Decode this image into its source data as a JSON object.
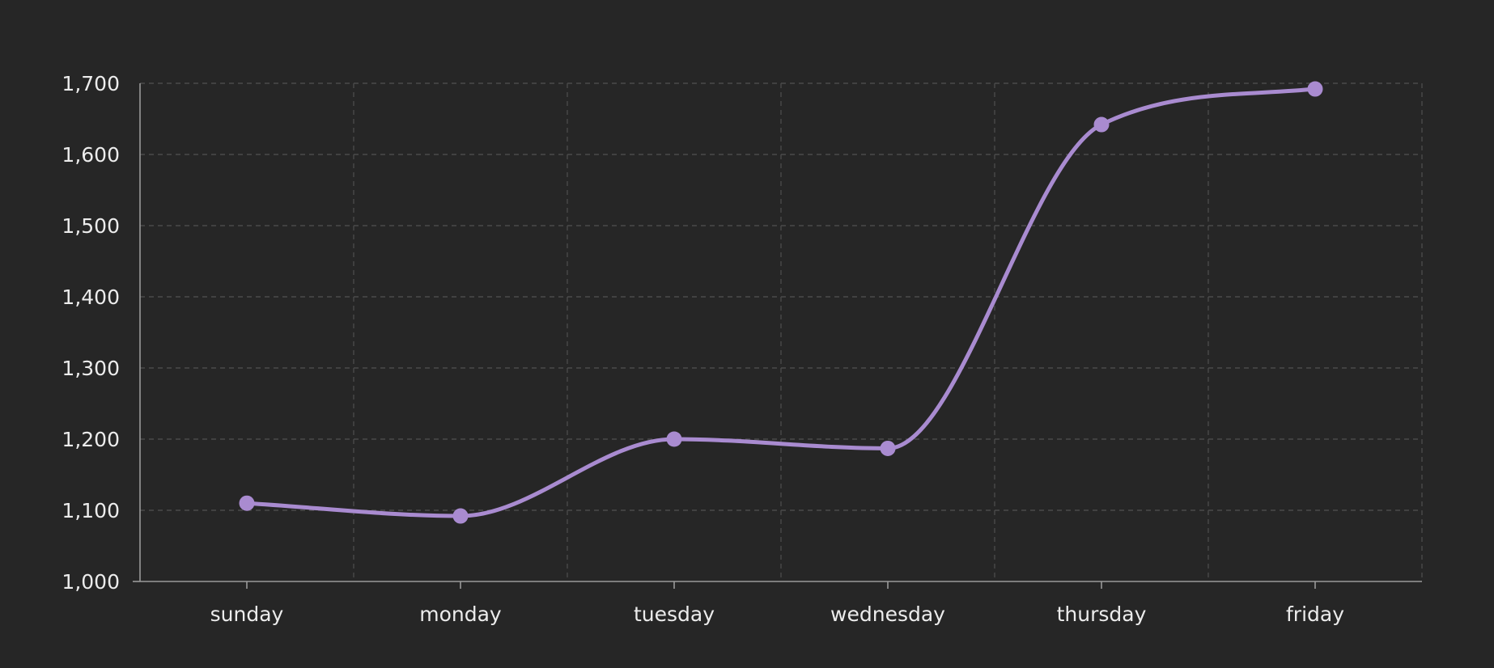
{
  "chart_data": {
    "type": "line",
    "smooth": true,
    "categories": [
      "sunday",
      "monday",
      "tuesday",
      "wednesday",
      "thursday",
      "friday"
    ],
    "series": [
      {
        "values": [
          1110,
          1092,
          1200,
          1187,
          1642,
          1692
        ],
        "color": "#a98bd0"
      }
    ],
    "title": "",
    "xlabel": "",
    "ylabel": "",
    "ylim": [
      1000,
      1700
    ],
    "yticks": [
      1000,
      1100,
      1200,
      1300,
      1400,
      1500,
      1600,
      1700
    ],
    "ytick_labels": [
      "1,000",
      "1,100",
      "1,200",
      "1,300",
      "1,400",
      "1,500",
      "1,600",
      "1,700"
    ],
    "grid": true,
    "background": "#262626"
  }
}
